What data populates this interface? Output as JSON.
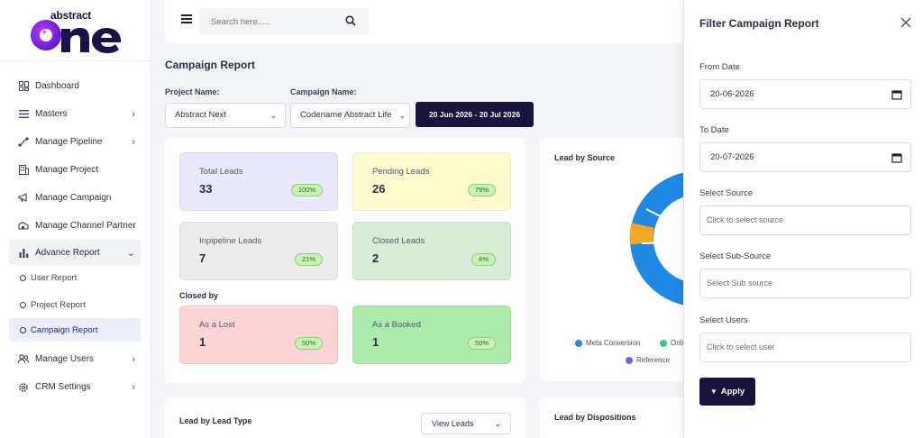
{
  "brand": {
    "top": "abstract",
    "bottom": "one"
  },
  "sidebar": {
    "items": [
      {
        "label": "Dashboard",
        "icon": "dashboard-icon"
      },
      {
        "label": "Masters",
        "icon": "list-icon"
      },
      {
        "label": "Manage Pipeline",
        "icon": "pipeline-icon"
      },
      {
        "label": "Manage Project",
        "icon": "building-icon"
      },
      {
        "label": "Manage Campaign",
        "icon": "megaphone-icon"
      },
      {
        "label": "Manage Channel Partner",
        "icon": "handshake-icon"
      },
      {
        "label": "Advance Report",
        "icon": "bar-chart-icon"
      }
    ],
    "subitems": [
      "User Report",
      "Project Report",
      "Campaign Report"
    ],
    "bottom_items": [
      {
        "label": "Manage Users",
        "icon": "users-icon"
      },
      {
        "label": "CRM Settings",
        "icon": "gear-icon"
      }
    ]
  },
  "search": {
    "placeholder": "Search here....."
  },
  "page": {
    "title": "Campaign Report",
    "project_label": "Project Name:",
    "project_value": "Abstract Next",
    "campaign_label": "Campaign Name:",
    "campaign_value": "Codename Abstract Life",
    "date_range": "20 Jun 2026 - 20 Jul 2026"
  },
  "stats": [
    {
      "label": "Total Leads",
      "value": "33",
      "pct": "100%",
      "color": "#e9e9fb"
    },
    {
      "label": "Pending Leads",
      "value": "26",
      "pct": "79%",
      "color": "#fefccf"
    },
    {
      "label": "Inpipeline Leads",
      "value": "7",
      "pct": "21%",
      "color": "#ececec"
    },
    {
      "label": "Closed Leads",
      "value": "2",
      "pct": "6%",
      "color": "#d7ebd7"
    }
  ],
  "closed_by": {
    "title": "Closed by",
    "items": [
      {
        "label": "As a Lost",
        "value": "1",
        "pct": "50%",
        "color": "#fbd5d5"
      },
      {
        "label": "As a Booked",
        "value": "1",
        "pct": "50%",
        "color": "#acebab"
      }
    ]
  },
  "lead_source": {
    "title": "Lead by Source",
    "legend": [
      {
        "label": "Meta Conversion",
        "color": "#1e88e5"
      },
      {
        "label": "Onli",
        "color": "#2ecc8f"
      },
      {
        "label": "Reference",
        "color": "#7b5fd6"
      }
    ]
  },
  "lead_type": {
    "title": "Lead by Lead Type",
    "button": "View Leads"
  },
  "dispositions": {
    "title": "Lead by Dispositions"
  },
  "filter_panel": {
    "title": "Filter Campaign Report",
    "from_label": "From Date",
    "from_value": "20-06-2026",
    "to_label": "To Date",
    "to_value": "20-07-2026",
    "source_label": "Select Source",
    "source_placeholder": "Click to select source",
    "subsource_label": "Select Sub-Source",
    "subsource_placeholder": "Select Sub source",
    "users_label": "Select Users",
    "users_placeholder": "Click to select user",
    "apply": "Apply"
  }
}
